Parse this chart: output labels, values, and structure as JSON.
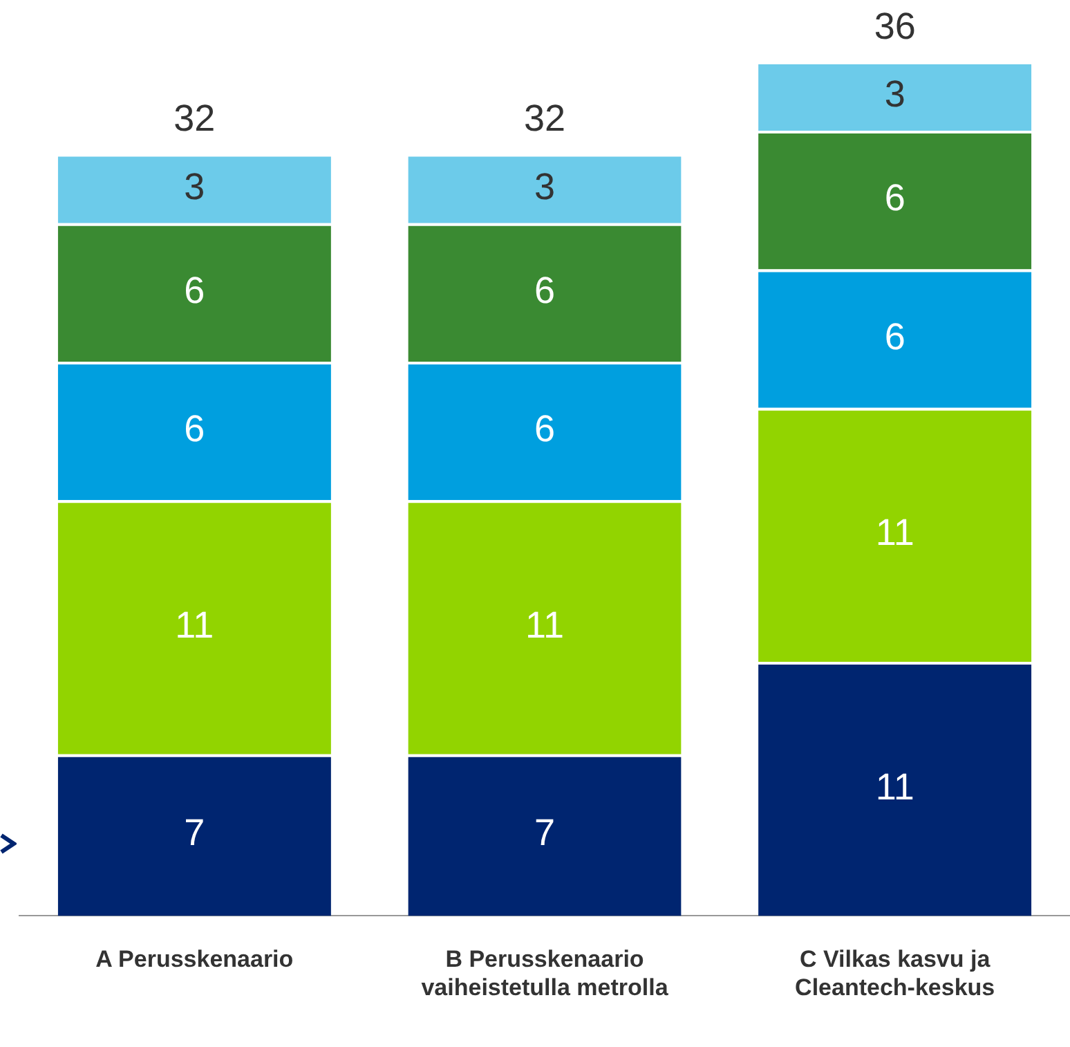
{
  "chart_data": {
    "type": "bar",
    "stacked": true,
    "data_labels": true,
    "legend": false,
    "grid": false,
    "categories": [
      "A Perusskenaario",
      "B Perusskenaario vaiheistetulla metrolla",
      "C Vilkas kasvu ja Cleantech-keskus"
    ],
    "series": [
      {
        "color": "#002570",
        "values": [
          7,
          7,
          11
        ]
      },
      {
        "color": "#92d400",
        "values": [
          11,
          11,
          11
        ]
      },
      {
        "color": "#009fdf",
        "values": [
          6,
          6,
          6
        ]
      },
      {
        "color": "#3a8a32",
        "values": [
          6,
          6,
          6
        ]
      },
      {
        "color": "#6ccbea",
        "values": [
          3,
          3,
          3
        ]
      }
    ],
    "totals": [
      "32",
      "32",
      "36"
    ]
  }
}
